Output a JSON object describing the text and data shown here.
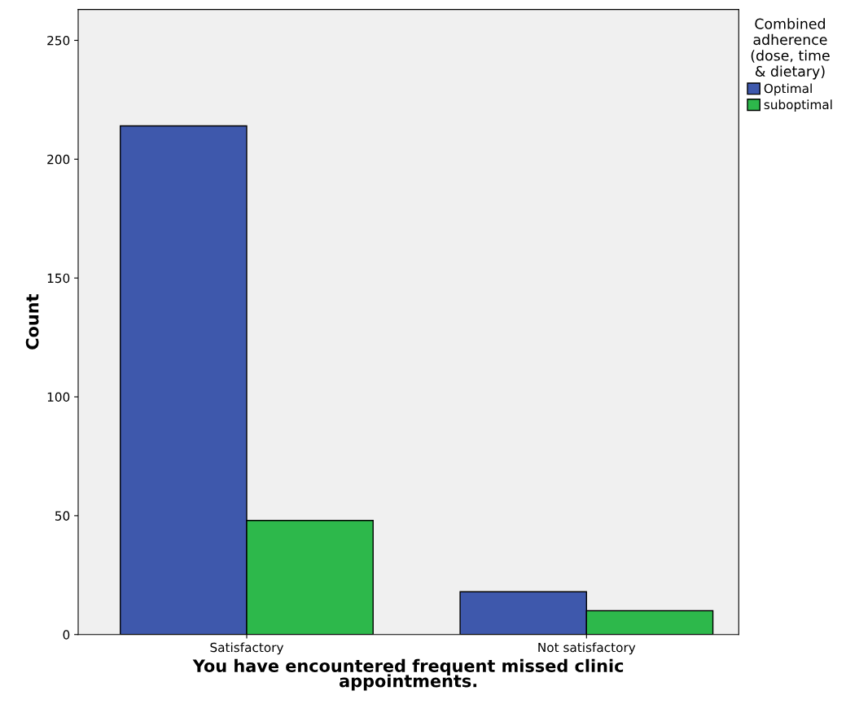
{
  "chart_data": {
    "type": "bar",
    "xlabel": "You have encountered frequent missed clinic\nappointments.",
    "ylabel": "Count",
    "legend_title": "Combined\nadherence\n(dose, time\n& dietary)",
    "categories": [
      "Satisfactory",
      "Not satisfactory"
    ],
    "series": [
      {
        "name": "Optimal",
        "color": "#3e58ac",
        "values": [
          214,
          18
        ]
      },
      {
        "name": "suboptimal",
        "color": "#2db84b",
        "values": [
          48,
          10
        ]
      }
    ],
    "ylim": [
      0,
      263
    ],
    "yticks": [
      0,
      50,
      100,
      150,
      200,
      250
    ],
    "grid": false,
    "legend": "top right"
  }
}
